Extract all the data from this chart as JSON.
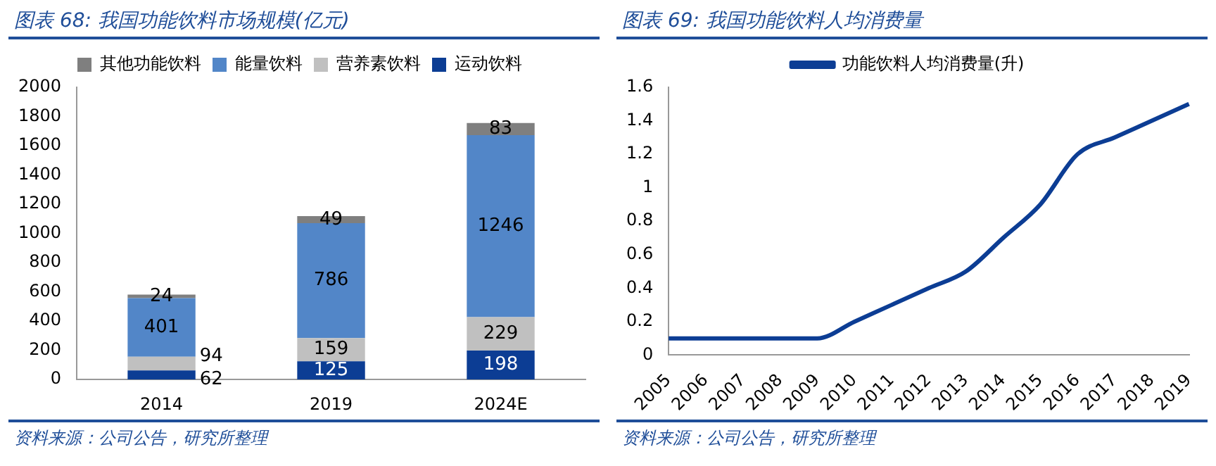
{
  "chart_data": [
    {
      "type": "bar",
      "title": "图表 68:  我国功能饮料市场规模(亿元)",
      "annotations": [
        "资料来源：公司公告，研究所整理"
      ],
      "stacked": true,
      "categories": [
        "2014",
        "2019",
        "2024E"
      ],
      "series": [
        {
          "name": "运动饮料",
          "color": "#0c3d94",
          "values": [
            62,
            125,
            198
          ]
        },
        {
          "name": "营养素饮料",
          "color": "#c0c0c0",
          "values": [
            94,
            159,
            229
          ]
        },
        {
          "name": "能量饮料",
          "color": "#5286c8",
          "values": [
            401,
            786,
            1246
          ]
        },
        {
          "name": "其他功能饮料",
          "color": "#7f7f7f",
          "values": [
            24,
            49,
            83
          ]
        }
      ],
      "ylim": [
        0,
        2000
      ],
      "yticks": [
        0,
        200,
        400,
        600,
        800,
        1000,
        1200,
        1400,
        1600,
        1800,
        2000
      ],
      "grid": false,
      "legend": "top",
      "data_labels": true
    },
    {
      "type": "line",
      "title": "图表 69:  我国功能饮料人均消费量",
      "annotations": [
        "资料来源：公司公告，研究所整理"
      ],
      "categories": [
        "2005",
        "2006",
        "2007",
        "2008",
        "2009",
        "2010",
        "2011",
        "2012",
        "2013",
        "2014",
        "2015",
        "2016",
        "2017",
        "2018",
        "2019"
      ],
      "series": [
        {
          "name": "功能饮料人均消费量(升)",
          "color": "#0c3d94",
          "values": [
            0.1,
            0.1,
            0.1,
            0.1,
            0.1,
            0.2,
            0.3,
            0.4,
            0.5,
            0.7,
            0.9,
            1.2,
            1.3,
            1.4,
            1.5
          ]
        }
      ],
      "ylim": [
        0,
        1.6
      ],
      "yticks": [
        0,
        0.2,
        0.4,
        0.6,
        0.8,
        1,
        1.2,
        1.4,
        1.6
      ],
      "grid": false,
      "legend": "top",
      "marker": "none"
    }
  ]
}
